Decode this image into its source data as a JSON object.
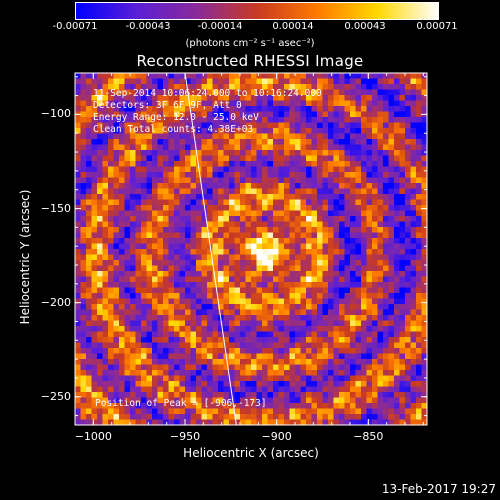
{
  "colorbar": {
    "ticks": [
      "-0.00071",
      "-0.00043",
      "-0.00014",
      "0.00014",
      "0.00043",
      "0.00071"
    ],
    "unit_label": "(photons cm⁻² s⁻¹ asec⁻²)",
    "colors": [
      "#0000ff",
      "#5a1fd6",
      "#8a2a9a",
      "#c83a22",
      "#ff7a00",
      "#ffd800",
      "#ffffff"
    ]
  },
  "chart_data": {
    "type": "heatmap",
    "title": "Reconstructed RHESSI Image",
    "xlabel": "Heliocentric X (arcsec)",
    "ylabel": "Heliocentric Y (arcsec)",
    "xlim": [
      -1010,
      -818
    ],
    "ylim": [
      -265,
      -78
    ],
    "x_ticks": [
      -1000,
      -950,
      -900,
      -850
    ],
    "y_ticks": [
      -100,
      -150,
      -200,
      -250
    ],
    "x_tick_labels": [
      "−1000",
      "−950",
      "−900",
      "−850"
    ],
    "y_tick_labels": [
      "−100",
      "−150",
      "−200",
      "−250"
    ],
    "peak": [
      -906,
      -173
    ],
    "limb_line": [
      [
        -950,
        -78
      ],
      [
        -922,
        -265
      ]
    ]
  },
  "annotations": {
    "time": "11-Sep-2014 10:06:24.000 to 10:16:24.000",
    "detectors": "Detectors: 3F 6F 9F, Att 0",
    "energy": "Energy Range: 12.0 - 25.0 keV",
    "method": "Clean     Total counts: 4.38E+03",
    "peak_text": "Position of Peak = [-906,-173]"
  },
  "footer": {
    "timestamp": "13-Feb-2017 19:27"
  }
}
